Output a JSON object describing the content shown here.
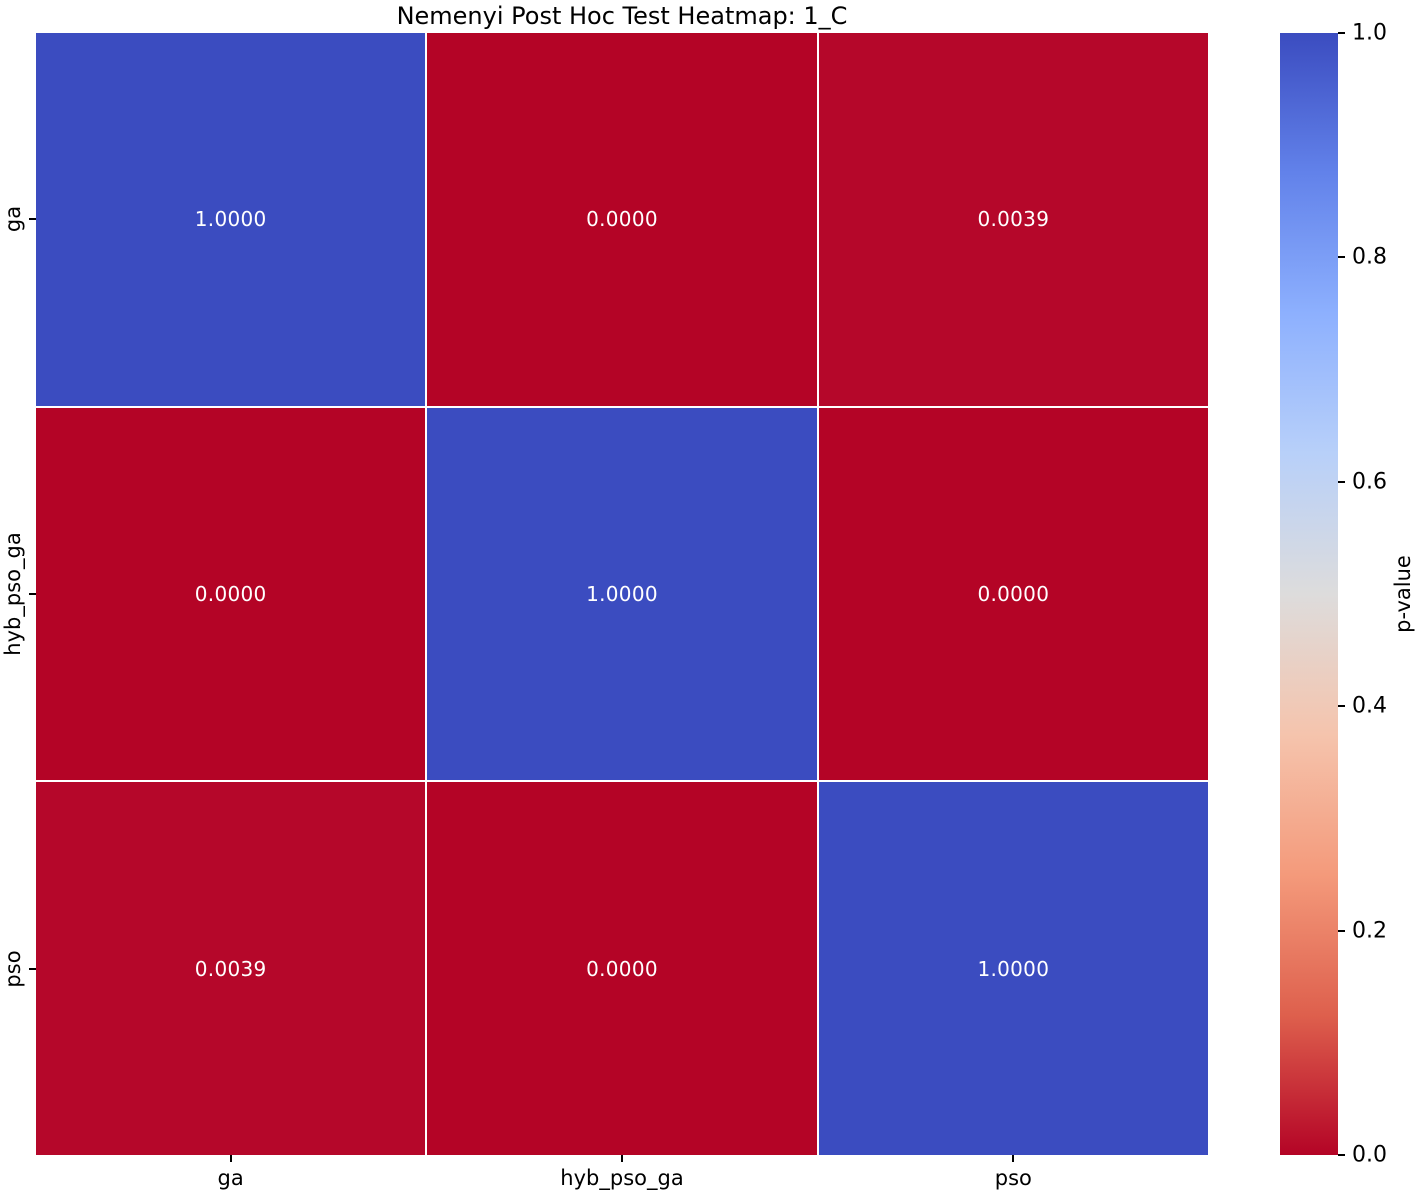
{
  "chart_data": {
    "type": "heatmap",
    "title": "Nemenyi Post Hoc Test Heatmap: 1_C",
    "x_categories": [
      "ga",
      "hyb_pso_ga",
      "pso"
    ],
    "y_categories": [
      "ga",
      "hyb_pso_ga",
      "pso"
    ],
    "values": [
      [
        1.0,
        0.0,
        0.0039
      ],
      [
        0.0,
        1.0,
        0.0
      ],
      [
        0.0039,
        0.0,
        1.0
      ]
    ],
    "cell_labels": [
      [
        "1.0000",
        "0.0000",
        "0.0039"
      ],
      [
        "0.0000",
        "1.0000",
        "0.0000"
      ],
      [
        "0.0039",
        "0.0000",
        "1.0000"
      ]
    ],
    "cell_colors": [
      [
        "#3b4cc0",
        "#b40426",
        "#b5072a"
      ],
      [
        "#b40426",
        "#3b4cc0",
        "#b40426"
      ],
      [
        "#b5072a",
        "#b40426",
        "#3b4cc0"
      ]
    ],
    "annotation_text_color": "#ffffff",
    "grid_line_color": "#ffffff",
    "colorbar": {
      "label": "p-value",
      "ticks": [
        {
          "value": 1.0,
          "label": "1.0"
        },
        {
          "value": 0.8,
          "label": "0.8"
        },
        {
          "value": 0.6,
          "label": "0.6"
        },
        {
          "value": 0.4,
          "label": "0.4"
        },
        {
          "value": 0.2,
          "label": "0.2"
        },
        {
          "value": 0.0,
          "label": "0.0"
        }
      ],
      "range": [
        0.0,
        1.0
      ],
      "colormap": "coolwarm",
      "gradient_top_to_bottom": [
        "#3b4cc0",
        "#6282ea",
        "#8db0fe",
        "#b8d0f9",
        "#dddcdc",
        "#f5c4ad",
        "#f49a7b",
        "#de604d",
        "#b40426"
      ]
    }
  }
}
